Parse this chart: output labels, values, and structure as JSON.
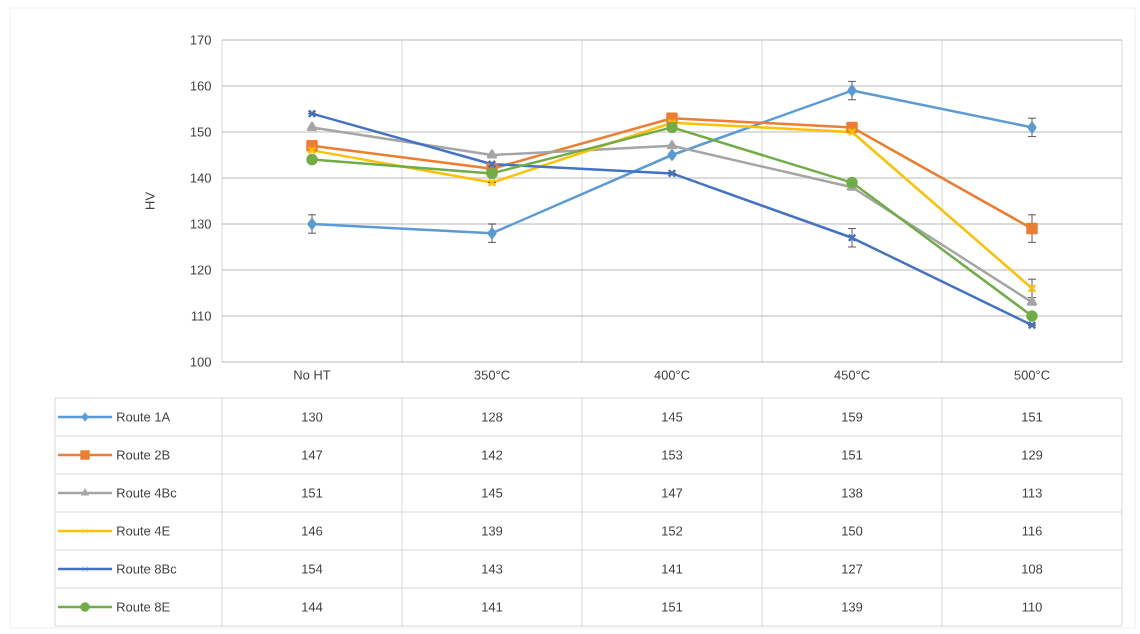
{
  "chart_data": {
    "type": "line",
    "ylabel": "HV",
    "categories": [
      "No HT",
      "350°C",
      "400°C",
      "450°C",
      "500°C"
    ],
    "series": [
      {
        "name": "Route 1A",
        "color": "#5b9bd5",
        "marker": "diamond",
        "values": [
          130,
          128,
          145,
          159,
          151
        ],
        "errors": [
          2,
          2,
          null,
          2,
          2
        ]
      },
      {
        "name": "Route 2B",
        "color": "#ed7d31",
        "marker": "square",
        "values": [
          147,
          142,
          153,
          151,
          129
        ],
        "errors": [
          null,
          null,
          null,
          null,
          3
        ]
      },
      {
        "name": "Route 4Bc",
        "color": "#a5a5a5",
        "marker": "triangle",
        "values": [
          151,
          145,
          147,
          138,
          113
        ]
      },
      {
        "name": "Route 4E",
        "color": "#ffc000",
        "marker": "cross",
        "values": [
          146,
          139,
          152,
          150,
          116
        ],
        "errors": [
          null,
          null,
          null,
          null,
          2
        ]
      },
      {
        "name": "Route 8Bc",
        "color": "#4472c4",
        "marker": "cross",
        "values": [
          154,
          143,
          141,
          127,
          108
        ],
        "errors": [
          null,
          null,
          null,
          2,
          null
        ]
      },
      {
        "name": "Route 8E",
        "color": "#70ad47",
        "marker": "circle",
        "values": [
          144,
          141,
          151,
          139,
          110
        ]
      }
    ],
    "ylim": [
      100,
      170
    ],
    "yticks": [
      100,
      110,
      120,
      130,
      140,
      150,
      160,
      170
    ],
    "grid": true,
    "legend": "bottom",
    "data_labels": true,
    "line_style": "solid"
  }
}
